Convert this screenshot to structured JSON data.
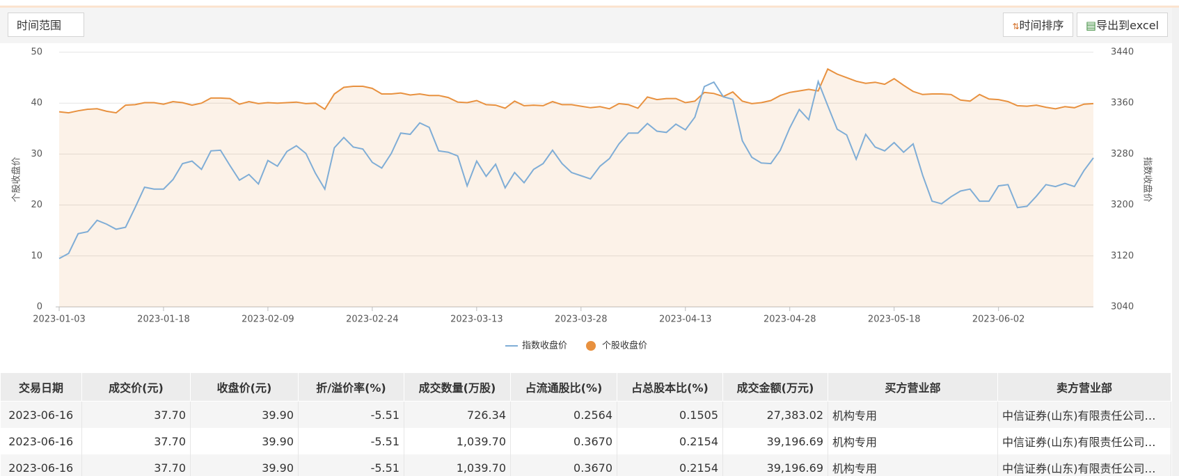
{
  "toolbar": {
    "filter_label": "时间范围",
    "buttons": [
      "时间排序",
      "导出到excel"
    ]
  },
  "chart_data": {
    "type": "line",
    "categories": [
      "2023-01-03",
      null,
      null,
      null,
      null,
      null,
      null,
      null,
      null,
      null,
      null,
      "2023-01-18",
      null,
      null,
      null,
      null,
      null,
      null,
      null,
      null,
      null,
      null,
      "2023-02-09",
      null,
      null,
      null,
      null,
      null,
      null,
      null,
      null,
      null,
      null,
      "2023-02-24",
      null,
      null,
      null,
      null,
      null,
      null,
      null,
      null,
      null,
      null,
      "2023-03-13",
      null,
      null,
      null,
      null,
      null,
      null,
      null,
      null,
      null,
      null,
      "2023-03-28",
      null,
      null,
      null,
      null,
      null,
      null,
      null,
      null,
      null,
      null,
      "2023-04-13",
      null,
      null,
      null,
      null,
      null,
      null,
      null,
      null,
      null,
      null,
      "2023-04-28",
      null,
      null,
      null,
      null,
      null,
      null,
      null,
      null,
      null,
      null,
      "2023-05-18",
      null,
      null,
      null,
      null,
      null,
      null,
      null,
      null,
      null,
      null,
      "2023-06-02",
      null,
      null,
      null,
      null,
      null,
      null,
      null,
      null,
      null,
      null
    ],
    "series": [
      {
        "name": "指数收盘价",
        "color": "#7fadd6",
        "axis": "y2",
        "area": false,
        "values": [
          3116,
          3124,
          3155,
          3158,
          3176,
          3170,
          3162,
          3165,
          3196,
          3228,
          3225,
          3225,
          3240,
          3265,
          3269,
          3256,
          3285,
          3286,
          3262,
          3239,
          3248,
          3233,
          3270,
          3261,
          3284,
          3293,
          3281,
          3250,
          3225,
          3290,
          3306,
          3291,
          3288,
          3267,
          3258,
          3281,
          3313,
          3311,
          3329,
          3322,
          3285,
          3283,
          3277,
          3230,
          3269,
          3245,
          3264,
          3227,
          3251,
          3235,
          3256,
          3265,
          3286,
          3265,
          3251,
          3246,
          3241,
          3261,
          3273,
          3296,
          3313,
          3313,
          3328,
          3316,
          3314,
          3327,
          3318,
          3338,
          3386,
          3393,
          3370,
          3366,
          3301,
          3275,
          3266,
          3265,
          3286,
          3321,
          3350,
          3334,
          3394,
          3356,
          3319,
          3310,
          3272,
          3311,
          3291,
          3285,
          3298,
          3283,
          3296,
          3247,
          3206,
          3202,
          3213,
          3222,
          3225,
          3206,
          3206,
          3230,
          3232,
          3196,
          3198,
          3214,
          3232,
          3229,
          3234,
          3229,
          3254,
          3274
        ]
      },
      {
        "name": "个股收盘价",
        "color": "#e8913f",
        "axis": "y",
        "area": true,
        "values": [
          38.3,
          38.1,
          38.5,
          38.8,
          38.9,
          38.4,
          38.1,
          39.6,
          39.7,
          40.1,
          40.1,
          39.8,
          40.3,
          40.1,
          39.6,
          40.0,
          41.0,
          41.0,
          40.9,
          39.8,
          40.3,
          39.9,
          40.1,
          40.0,
          40.1,
          40.2,
          39.9,
          40.0,
          38.8,
          41.8,
          43.1,
          43.3,
          43.3,
          42.9,
          41.8,
          41.8,
          42.0,
          41.6,
          41.8,
          41.5,
          41.5,
          41.1,
          40.2,
          40.1,
          40.5,
          39.7,
          39.6,
          39.0,
          40.4,
          39.5,
          39.6,
          39.5,
          40.3,
          39.7,
          39.7,
          39.4,
          39.1,
          39.3,
          38.9,
          39.9,
          39.7,
          39.0,
          41.2,
          40.7,
          40.9,
          40.9,
          40.1,
          40.4,
          42.1,
          41.9,
          41.3,
          42.2,
          40.4,
          39.9,
          40.1,
          40.5,
          41.5,
          42.1,
          42.4,
          42.7,
          42.4,
          46.7,
          45.7,
          45.0,
          44.3,
          43.9,
          44.1,
          43.7,
          44.8,
          43.5,
          42.3,
          41.7,
          41.8,
          41.8,
          41.7,
          40.6,
          40.4,
          41.7,
          40.8,
          40.7,
          40.3,
          39.5,
          39.4,
          39.6,
          39.2,
          38.9,
          39.3,
          39.1,
          39.8,
          39.9
        ]
      }
    ],
    "ylabel": "个股收盘价",
    "y2label": "指数收盘价",
    "ylim": [
      0,
      50
    ],
    "yticks": [
      0,
      10,
      20,
      30,
      40,
      50
    ],
    "y2lim": [
      3040,
      3440
    ],
    "y2ticks": [
      3040,
      3120,
      3200,
      3280,
      3360,
      3440
    ],
    "grid": true,
    "legend": "bottom"
  },
  "table": {
    "columns": [
      "交易日期",
      "成交价(元)",
      "收盘价(元)",
      "折/溢价率(%)",
      "成交数量(万股)",
      "占流通股比(%)",
      "占总股本比(%)",
      "成交金额(万元)",
      "买方营业部",
      "卖方营业部"
    ],
    "rows": [
      [
        "2023-06-16",
        "37.70",
        "39.90",
        "-5.51",
        "726.34",
        "0.2564",
        "0.1505",
        "27,383.02",
        "机构专用",
        "中信证券(山东)有限责任公司…"
      ],
      [
        "2023-06-16",
        "37.70",
        "39.90",
        "-5.51",
        "1,039.70",
        "0.3670",
        "0.2154",
        "39,196.69",
        "机构专用",
        "中信证券(山东)有限责任公司…"
      ],
      [
        "2023-06-16",
        "37.70",
        "39.90",
        "-5.51",
        "1,039.70",
        "0.3670",
        "0.2154",
        "39,196.69",
        "机构专用",
        "中信证券(山东)有限责任公司…"
      ]
    ]
  }
}
